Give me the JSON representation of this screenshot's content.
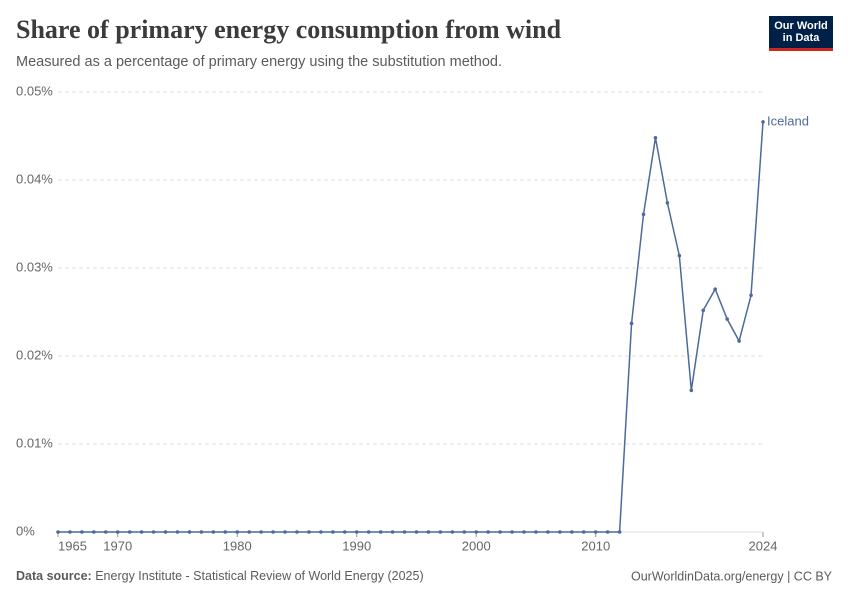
{
  "logo": "Our World in Data",
  "chart_data": {
    "type": "line",
    "title": "Share of primary energy consumption from wind",
    "subtitle": "Measured as a percentage of primary energy using the substitution method.",
    "source_label": "Data source:",
    "source": "Energy Institute - Statistical Review of World Energy (2025)",
    "credit": "OurWorldinData.org/energy | CC BY",
    "x": [
      1965,
      1966,
      1967,
      1968,
      1969,
      1970,
      1971,
      1972,
      1973,
      1974,
      1975,
      1976,
      1977,
      1978,
      1979,
      1980,
      1981,
      1982,
      1983,
      1984,
      1985,
      1986,
      1987,
      1988,
      1989,
      1990,
      1991,
      1992,
      1993,
      1994,
      1995,
      1996,
      1997,
      1998,
      1999,
      2000,
      2001,
      2002,
      2003,
      2004,
      2005,
      2006,
      2007,
      2008,
      2009,
      2010,
      2011,
      2012,
      2013,
      2014,
      2015,
      2016,
      2017,
      2018,
      2019,
      2020,
      2021,
      2022,
      2023,
      2024
    ],
    "series": [
      {
        "name": "Iceland",
        "color": "#4c6a9c",
        "values": [
          0,
          0,
          0,
          0,
          0,
          0,
          0,
          0,
          0,
          0,
          0,
          0,
          0,
          0,
          0,
          0,
          0,
          0,
          0,
          0,
          0,
          0,
          0,
          0,
          0,
          0,
          0,
          0,
          0,
          0,
          0,
          0,
          0,
          0,
          0,
          0,
          0,
          0,
          0,
          0,
          0,
          0,
          0,
          0,
          0,
          0,
          0,
          0,
          0.0237,
          0.0361,
          0.0448,
          0.0374,
          0.0314,
          0.0161,
          0.0252,
          0.0276,
          0.0242,
          0.0217,
          0.0269,
          0.0466
        ]
      }
    ],
    "xlim": [
      1965,
      2024
    ],
    "xticks": [
      1965,
      1970,
      1980,
      1990,
      2000,
      2010,
      2024
    ],
    "ylim": [
      0,
      0.05
    ],
    "yticks": [
      {
        "value": 0,
        "label": "0%"
      },
      {
        "value": 0.01,
        "label": "0.01%"
      },
      {
        "value": 0.02,
        "label": "0.02%"
      },
      {
        "value": 0.03,
        "label": "0.03%"
      },
      {
        "value": 0.04,
        "label": "0.04%"
      },
      {
        "value": 0.05,
        "label": "0.05%"
      }
    ],
    "grid": true
  }
}
